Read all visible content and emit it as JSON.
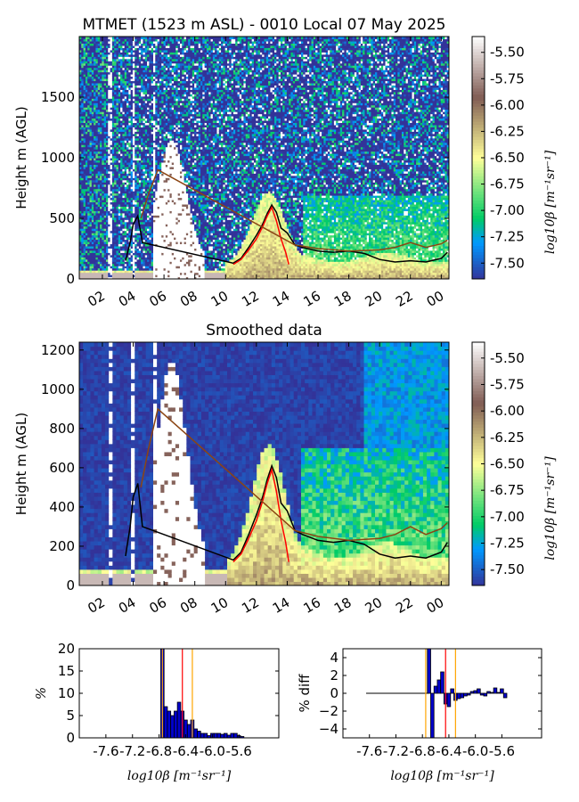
{
  "chart_data": [
    {
      "type": "heatmap",
      "title": "MTMET (1523 m ASL) - 0010 Local 07 May 2025",
      "ylabel": "Height m (AGL)",
      "x_ticks": [
        "02",
        "04",
        "06",
        "08",
        "10",
        "12",
        "14",
        "16",
        "18",
        "20",
        "22",
        "00"
      ],
      "x_tick_hours": [
        2,
        4,
        6,
        8,
        10,
        12,
        14,
        16,
        18,
        20,
        22,
        24
      ],
      "xlim": [
        0.5,
        24.5
      ],
      "ylim": [
        0,
        2000
      ],
      "y_ticks": [
        0,
        500,
        1000,
        1500
      ],
      "colorbar": {
        "label": "log10β [m⁻¹sr⁻¹]",
        "ticks": [
          "-5.50",
          "-5.75",
          "-6.00",
          "-6.25",
          "-6.50",
          "-6.75",
          "-7.00",
          "-7.25",
          "-7.50"
        ],
        "tick_values": [
          -5.5,
          -5.75,
          -6.0,
          -6.25,
          -6.5,
          -6.75,
          -7.0,
          -7.25,
          -7.5
        ],
        "range": [
          -7.65,
          -5.35
        ],
        "colormap": "terrain"
      },
      "series": [
        {
          "color": "#000000",
          "x": [
            3.5,
            3.8,
            4.0,
            4.3,
            4.6,
            10.5,
            11.0,
            11.5,
            12.0,
            12.4,
            12.7,
            13.0,
            13.3,
            13.6,
            14.0,
            14.5,
            15.0,
            16.0,
            17.0,
            18.0,
            19.0,
            20.0,
            21.0,
            22.0,
            23.0,
            24.0,
            24.4
          ],
          "y": [
            150,
            300,
            450,
            520,
            300,
            130,
            170,
            260,
            360,
            450,
            540,
            610,
            550,
            420,
            380,
            280,
            260,
            230,
            220,
            230,
            210,
            160,
            140,
            150,
            140,
            170,
            220
          ]
        },
        {
          "color": "#ff0000",
          "x": [
            10.5,
            11.0,
            11.5,
            12.0,
            12.4,
            12.7,
            13.0,
            13.3,
            13.6,
            13.9,
            14.1
          ],
          "y": [
            120,
            160,
            240,
            330,
            430,
            520,
            590,
            480,
            330,
            220,
            120
          ]
        },
        {
          "color": "#8b4513",
          "x": [
            4.5,
            5.0,
            5.6,
            14.5,
            16.0,
            18.0,
            20.0,
            21.0,
            22.0,
            23.0,
            24.0,
            24.4
          ],
          "y": [
            500,
            700,
            900,
            280,
            250,
            230,
            240,
            260,
            300,
            260,
            290,
            320
          ]
        }
      ]
    },
    {
      "type": "heatmap",
      "title": "Smoothed data",
      "ylabel": "Height m (AGL)",
      "x_ticks": [
        "02",
        "04",
        "06",
        "08",
        "10",
        "12",
        "14",
        "16",
        "18",
        "20",
        "22",
        "00"
      ],
      "x_tick_hours": [
        2,
        4,
        6,
        8,
        10,
        12,
        14,
        16,
        18,
        20,
        22,
        24
      ],
      "xlim": [
        0.5,
        24.5
      ],
      "ylim": [
        0,
        1240
      ],
      "y_ticks": [
        0,
        200,
        400,
        600,
        800,
        1000,
        1200
      ],
      "colorbar": {
        "label": "log10β [m⁻¹sr⁻¹]",
        "ticks": [
          "-5.50",
          "-5.75",
          "-6.00",
          "-6.25",
          "-6.50",
          "-6.75",
          "-7.00",
          "-7.25",
          "-7.50"
        ],
        "tick_values": [
          -5.5,
          -5.75,
          -6.0,
          -6.25,
          -6.5,
          -6.75,
          -7.0,
          -7.25,
          -7.5
        ],
        "range": [
          -7.65,
          -5.35
        ],
        "colormap": "terrain"
      },
      "series": [
        {
          "color": "#000000",
          "x": [
            3.5,
            3.8,
            4.0,
            4.3,
            4.6,
            10.5,
            11.0,
            11.5,
            12.0,
            12.4,
            12.7,
            13.0,
            13.3,
            13.6,
            14.0,
            14.5,
            15.0,
            16.0,
            17.0,
            18.0,
            19.0,
            20.0,
            21.0,
            22.0,
            23.0,
            24.0,
            24.4
          ],
          "y": [
            150,
            300,
            450,
            520,
            300,
            130,
            170,
            260,
            360,
            450,
            540,
            610,
            550,
            420,
            380,
            280,
            260,
            230,
            220,
            230,
            210,
            160,
            140,
            150,
            140,
            170,
            220
          ]
        },
        {
          "color": "#ff0000",
          "x": [
            10.5,
            11.0,
            11.5,
            12.0,
            12.4,
            12.7,
            13.0,
            13.3,
            13.6,
            13.9,
            14.1
          ],
          "y": [
            120,
            160,
            240,
            330,
            430,
            520,
            590,
            480,
            330,
            220,
            120
          ]
        },
        {
          "color": "#8b4513",
          "x": [
            4.5,
            5.0,
            5.6,
            14.5,
            16.0,
            18.0,
            20.0,
            21.0,
            22.0,
            23.0,
            24.0,
            24.4
          ],
          "y": [
            500,
            700,
            900,
            280,
            250,
            230,
            240,
            260,
            300,
            260,
            290,
            320
          ]
        }
      ]
    },
    {
      "type": "bar",
      "ylabel": "%",
      "xlabel": "log10β [m⁻¹sr⁻¹]",
      "x_ticks": [
        "-7.6",
        "-7.2",
        "-6.8",
        "-6.4",
        "-6.0",
        "-5.6"
      ],
      "x_tick_values": [
        -7.6,
        -7.2,
        -6.8,
        -6.4,
        -6.0,
        -5.6
      ],
      "xlim": [
        -8.0,
        -5.0
      ],
      "ylim": [
        0,
        20
      ],
      "y_ticks": [
        "0",
        "5",
        "10",
        "15",
        "20"
      ],
      "y_tick_values": [
        0,
        5,
        10,
        15,
        20
      ],
      "bin_width": 0.05,
      "x": [
        -6.75,
        -6.7,
        -6.65,
        -6.6,
        -6.55,
        -6.5,
        -6.45,
        -6.4,
        -6.35,
        -6.3,
        -6.25,
        -6.2,
        -6.15,
        -6.1,
        -6.05,
        -6.0,
        -5.95,
        -5.9,
        -5.85,
        -5.8,
        -5.75,
        -5.7,
        -5.65,
        -5.6,
        -5.55
      ],
      "values": [
        20,
        7,
        6,
        5,
        6,
        8,
        6,
        4,
        3,
        4,
        2,
        1.5,
        1,
        1,
        0.5,
        1,
        1,
        1,
        0.8,
        1,
        0.6,
        1,
        1,
        0.5,
        0.3
      ],
      "bar_color": "#0000cc",
      "vlines": [
        {
          "x": -6.75,
          "color": "#ffa500"
        },
        {
          "x": -6.45,
          "color": "#ff0000"
        },
        {
          "x": -6.3,
          "color": "#ffa500"
        }
      ]
    },
    {
      "type": "bar",
      "ylabel": "% diff",
      "xlabel": "log10β [m⁻¹sr⁻¹]",
      "x_ticks": [
        "-7.6",
        "-7.2",
        "-6.8",
        "-6.4",
        "-6.0",
        "-5.6"
      ],
      "x_tick_values": [
        -7.6,
        -7.2,
        -6.8,
        -6.4,
        -6.0,
        -5.6
      ],
      "xlim": [
        -8.0,
        -5.0
      ],
      "ylim": [
        -5,
        5
      ],
      "y_ticks": [
        "4",
        "2",
        "0",
        "−2",
        "−4"
      ],
      "y_tick_values": [
        4,
        2,
        0,
        -2,
        -4
      ],
      "bin_width": 0.05,
      "x": [
        -6.7,
        -6.65,
        -6.6,
        -6.55,
        -6.5,
        -6.45,
        -6.4,
        -6.35,
        -6.3,
        -6.25,
        -6.2,
        -6.15,
        -6.1,
        -6.05,
        -6.0,
        -5.95,
        -5.9,
        -5.85,
        -5.8,
        -5.75,
        -5.7,
        -5.65,
        -5.6,
        -5.55
      ],
      "values": [
        5,
        -5,
        0.8,
        1.5,
        2.4,
        -1.2,
        -1.5,
        0.5,
        -0.8,
        -0.6,
        -0.5,
        -0.3,
        -0.2,
        0.2,
        0.3,
        0.5,
        -0.2,
        -0.3,
        0.2,
        0.1,
        0.6,
        0.1,
        0.5,
        -0.5
      ],
      "baseline": {
        "xrange": [
          -7.65,
          -6.7
        ],
        "value": 0,
        "color": "#000000"
      },
      "bar_color": "#0000cc",
      "vlines": [
        {
          "x": -6.75,
          "color": "#ffa500"
        },
        {
          "x": -6.45,
          "color": "#ff0000"
        },
        {
          "x": -6.3,
          "color": "#ffa500"
        }
      ]
    }
  ]
}
